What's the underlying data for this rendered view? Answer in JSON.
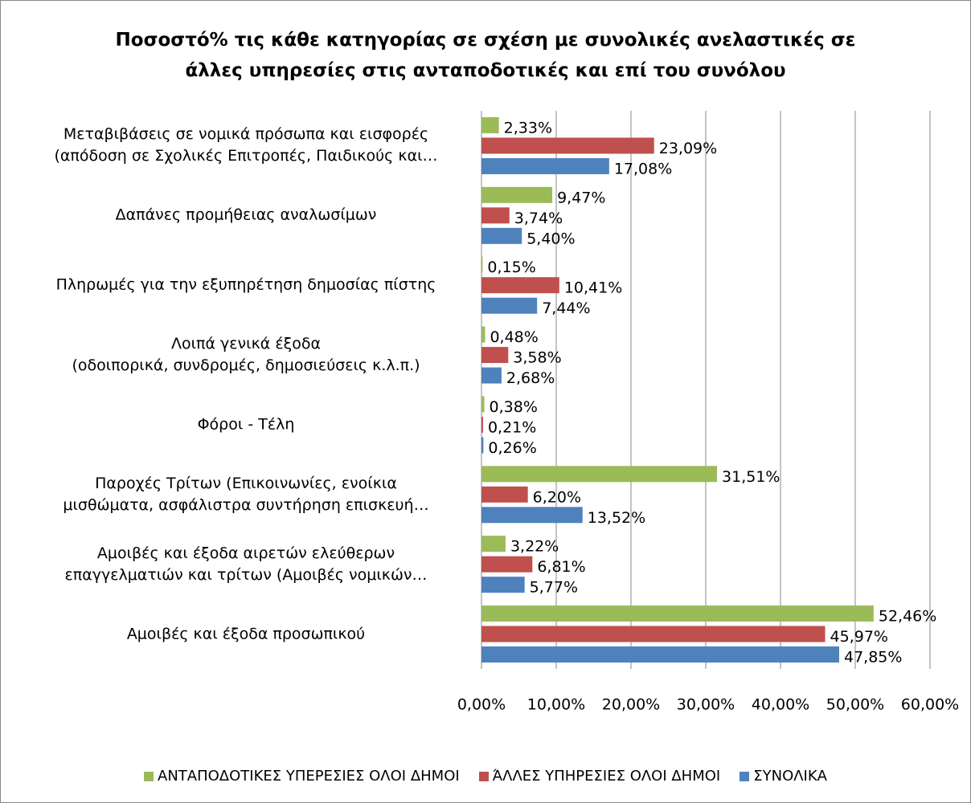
{
  "chart_data": {
    "type": "barh",
    "title": "Ποσοστό%  τις κάθε κατηγορίας σε σχέση με συνολικές ανελαστικές σε\nάλλες υπηρεσίες στις ανταποδοτικές και επί του συνόλου",
    "categories": [
      "Μεταβιβάσεις σε νομικά πρόσωπα και εισφορές\n(απόδοση σε Σχολικές Επιτροπές, Παιδικούς και…",
      "Δαπάνες προμήθειας αναλωσίμων",
      "Πληρωμές για την εξυπηρέτηση δημοσίας πίστης",
      "Λοιπά γενικά έξοδα\n(οδοιπορικά, συνδρομές, δημοσιεύσεις κ.λ.π.)",
      "Φόροι - Τέλη",
      "Παροχές Τρίτων (Επικοινωνίες, ενοίκια\nμισθώματα, ασφάλιστρα συντήρηση επισκευή…",
      "Αμοιβές και έξοδα αιρετών ελεύθερων\nεπαγγελματιών και τρίτων (Αμοιβές νομικών…",
      "Αμοιβές και έξοδα προσωπικού"
    ],
    "series": [
      {
        "name": "ΑΝΤΑΠΟΔΟΤΙΚΕΣ ΥΠΕΡΕΣΙΕΣ ΟΛΟΙ ΔΗΜΟΙ",
        "color": "#9bbb59",
        "values": [
          2.33,
          9.47,
          0.15,
          0.48,
          0.38,
          31.51,
          3.22,
          52.46
        ],
        "value_labels": [
          "2,33%",
          "9,47%",
          "0,15%",
          "0,48%",
          "0,38%",
          "31,51%",
          "3,22%",
          "52,46%"
        ]
      },
      {
        "name": "ΆΛΛΕΣ ΥΠΗΡΕΣΙΕΣ ΟΛΟΙ ΔΗΜΟΙ",
        "color": "#c0504d",
        "values": [
          23.09,
          3.74,
          10.41,
          3.58,
          0.21,
          6.2,
          6.81,
          45.97
        ],
        "value_labels": [
          "23,09%",
          "3,74%",
          "10,41%",
          "3,58%",
          "0,21%",
          "6,20%",
          "6,81%",
          "45,97%"
        ]
      },
      {
        "name": "ΣΥΝΟΛΙΚΑ",
        "color": "#4f81bd",
        "values": [
          17.08,
          5.4,
          7.44,
          2.68,
          0.26,
          13.52,
          5.77,
          47.85
        ],
        "value_labels": [
          "17,08%",
          "5,40%",
          "7,44%",
          "2,68%",
          "0,26%",
          "13,52%",
          "5,77%",
          "47,85%"
        ]
      }
    ],
    "xlim": [
      0,
      60
    ],
    "xticks": [
      {
        "value": 0,
        "label": "0,00%"
      },
      {
        "value": 10,
        "label": "10,00%"
      },
      {
        "value": 20,
        "label": "20,00%"
      },
      {
        "value": 30,
        "label": "30,00%"
      },
      {
        "value": 40,
        "label": "40,00%"
      },
      {
        "value": 50,
        "label": "50,00%"
      },
      {
        "value": 60,
        "label": "60,00%"
      }
    ],
    "grid": true,
    "legend": "bottom"
  }
}
